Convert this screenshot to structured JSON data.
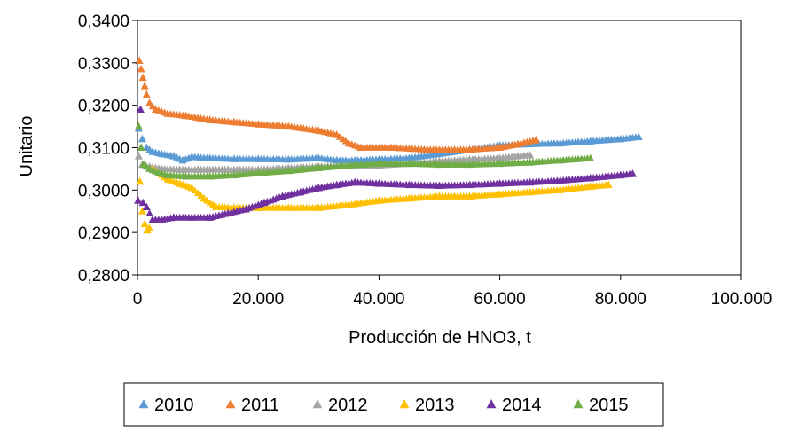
{
  "chart_data": {
    "type": "scatter",
    "title": "",
    "xlabel": "Producción de HNO3,  t",
    "ylabel": "Unitario",
    "xlim": [
      0,
      100000
    ],
    "ylim": [
      0.28,
      0.34
    ],
    "x_ticks": [
      "0",
      "20.000",
      "40.000",
      "60.000",
      "80.000",
      "100.000"
    ],
    "y_ticks": [
      "0,2800",
      "0,2900",
      "0,3000",
      "0,3100",
      "0,3200",
      "0,3300",
      "0,3400"
    ],
    "grid": false,
    "legend_position": "bottom",
    "series": [
      {
        "name": "2010",
        "color": "#5b9bd5",
        "points": [
          [
            200,
            0.3145
          ],
          [
            800,
            0.312
          ],
          [
            1500,
            0.31
          ],
          [
            2500,
            0.309
          ],
          [
            4000,
            0.3085
          ],
          [
            6000,
            0.308
          ],
          [
            7500,
            0.307
          ],
          [
            9000,
            0.3078
          ],
          [
            12000,
            0.3075
          ],
          [
            16000,
            0.3073
          ],
          [
            20000,
            0.3073
          ],
          [
            25000,
            0.3072
          ],
          [
            30000,
            0.3075
          ],
          [
            33000,
            0.307
          ],
          [
            36000,
            0.307
          ],
          [
            40000,
            0.3072
          ],
          [
            45000,
            0.3075
          ],
          [
            50000,
            0.3085
          ],
          [
            55000,
            0.3095
          ],
          [
            60000,
            0.3105
          ],
          [
            65000,
            0.3108
          ],
          [
            70000,
            0.311
          ],
          [
            75000,
            0.3115
          ],
          [
            80000,
            0.312
          ],
          [
            83000,
            0.3125
          ]
        ]
      },
      {
        "name": "2011",
        "color": "#ed7d31",
        "points": [
          [
            300,
            0.3305
          ],
          [
            600,
            0.3285
          ],
          [
            900,
            0.3265
          ],
          [
            1200,
            0.3245
          ],
          [
            1500,
            0.3225
          ],
          [
            2000,
            0.3205
          ],
          [
            3000,
            0.319
          ],
          [
            5000,
            0.318
          ],
          [
            8000,
            0.3175
          ],
          [
            12000,
            0.3165
          ],
          [
            16000,
            0.316
          ],
          [
            20000,
            0.3155
          ],
          [
            25000,
            0.315
          ],
          [
            30000,
            0.314
          ],
          [
            33000,
            0.313
          ],
          [
            35000,
            0.311
          ],
          [
            37000,
            0.31
          ],
          [
            42000,
            0.31
          ],
          [
            48000,
            0.3095
          ],
          [
            55000,
            0.3095
          ],
          [
            60000,
            0.31
          ],
          [
            63000,
            0.3108
          ],
          [
            66000,
            0.3118
          ]
        ]
      },
      {
        "name": "2012",
        "color": "#a5a5a5",
        "points": [
          [
            200,
            0.308
          ],
          [
            800,
            0.306
          ],
          [
            2000,
            0.3055
          ],
          [
            4000,
            0.305
          ],
          [
            7000,
            0.3048
          ],
          [
            10000,
            0.3048
          ],
          [
            15000,
            0.3048
          ],
          [
            20000,
            0.3048
          ],
          [
            25000,
            0.3052
          ],
          [
            30000,
            0.3055
          ],
          [
            35000,
            0.3058
          ],
          [
            40000,
            0.3058
          ],
          [
            45000,
            0.3062
          ],
          [
            50000,
            0.3068
          ],
          [
            55000,
            0.3072
          ],
          [
            60000,
            0.3075
          ],
          [
            63000,
            0.308
          ],
          [
            65000,
            0.3082
          ]
        ]
      },
      {
        "name": "2013",
        "color": "#ffc000",
        "points": [
          [
            400,
            0.302
          ],
          [
            800,
            0.295
          ],
          [
            1200,
            0.292
          ],
          [
            1600,
            0.2905
          ],
          [
            2000,
            0.291
          ],
          [
            2500,
            0.305
          ],
          [
            3500,
            0.304
          ],
          [
            5000,
            0.3025
          ],
          [
            7000,
            0.3015
          ],
          [
            9000,
            0.3005
          ],
          [
            11000,
            0.298
          ],
          [
            13000,
            0.296
          ],
          [
            16000,
            0.2958
          ],
          [
            20000,
            0.2958
          ],
          [
            25000,
            0.2958
          ],
          [
            30000,
            0.2958
          ],
          [
            35000,
            0.2965
          ],
          [
            40000,
            0.2975
          ],
          [
            45000,
            0.298
          ],
          [
            50000,
            0.2985
          ],
          [
            55000,
            0.2985
          ],
          [
            60000,
            0.299
          ],
          [
            65000,
            0.2995
          ],
          [
            70000,
            0.3
          ],
          [
            75000,
            0.3008
          ],
          [
            78000,
            0.3012
          ]
        ]
      },
      {
        "name": "2014",
        "color": "#7030a0",
        "points": [
          [
            100,
            0.2975
          ],
          [
            500,
            0.319
          ],
          [
            900,
            0.297
          ],
          [
            1500,
            0.296
          ],
          [
            2500,
            0.293
          ],
          [
            4000,
            0.293
          ],
          [
            6000,
            0.2935
          ],
          [
            9000,
            0.2935
          ],
          [
            12000,
            0.2935
          ],
          [
            15000,
            0.2945
          ],
          [
            18000,
            0.2955
          ],
          [
            21000,
            0.297
          ],
          [
            24000,
            0.2985
          ],
          [
            27000,
            0.2995
          ],
          [
            30000,
            0.3005
          ],
          [
            33000,
            0.3012
          ],
          [
            36000,
            0.3018
          ],
          [
            40000,
            0.3015
          ],
          [
            45000,
            0.3012
          ],
          [
            50000,
            0.301
          ],
          [
            55000,
            0.3012
          ],
          [
            60000,
            0.3015
          ],
          [
            65000,
            0.3018
          ],
          [
            70000,
            0.3022
          ],
          [
            75000,
            0.3028
          ],
          [
            80000,
            0.3035
          ],
          [
            82000,
            0.3038
          ]
        ]
      },
      {
        "name": "2015",
        "color": "#70ad47",
        "points": [
          [
            200,
            0.315
          ],
          [
            600,
            0.31
          ],
          [
            1000,
            0.306
          ],
          [
            2000,
            0.305
          ],
          [
            3500,
            0.304
          ],
          [
            5000,
            0.3035
          ],
          [
            8000,
            0.3032
          ],
          [
            12000,
            0.3032
          ],
          [
            16000,
            0.3035
          ],
          [
            20000,
            0.304
          ],
          [
            25000,
            0.3045
          ],
          [
            30000,
            0.3052
          ],
          [
            35000,
            0.3058
          ],
          [
            40000,
            0.3062
          ],
          [
            45000,
            0.3062
          ],
          [
            50000,
            0.306
          ],
          [
            55000,
            0.306
          ],
          [
            60000,
            0.3062
          ],
          [
            65000,
            0.3065
          ],
          [
            70000,
            0.307
          ],
          [
            75000,
            0.3075
          ]
        ]
      }
    ]
  }
}
